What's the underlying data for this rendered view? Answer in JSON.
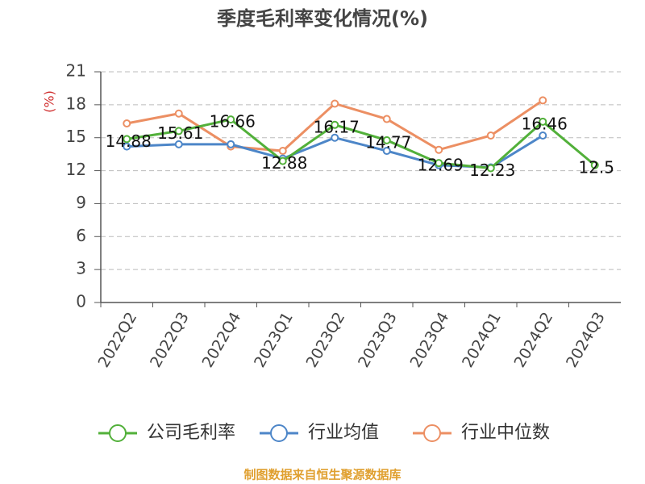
{
  "chart_data": {
    "type": "line",
    "title": "季度毛利率变化情况(%)",
    "y_label": "(%)",
    "categories": [
      "2022Q2",
      "2022Q3",
      "2022Q4",
      "2023Q1",
      "2023Q2",
      "2023Q3",
      "2023Q4",
      "2024Q1",
      "2024Q2",
      "2024Q3"
    ],
    "series": [
      {
        "name": "公司毛利率",
        "color": "#52b03a",
        "values": [
          14.88,
          15.61,
          16.66,
          12.88,
          16.17,
          14.77,
          12.69,
          12.23,
          16.46,
          12.5
        ],
        "show_labels": true
      },
      {
        "name": "行业均值",
        "color": "#4d86c8",
        "values": [
          14.2,
          14.4,
          14.4,
          13.1,
          15.0,
          13.8,
          12.5,
          12.3,
          15.2,
          null
        ],
        "show_labels": false
      },
      {
        "name": "行业中位数",
        "color": "#ec8f63",
        "values": [
          16.3,
          17.2,
          14.2,
          13.8,
          18.1,
          16.7,
          13.9,
          15.2,
          18.4,
          null
        ],
        "show_labels": false
      }
    ],
    "ylim": [
      0,
      21
    ],
    "yticks": [
      0,
      3,
      6,
      9,
      12,
      15,
      18,
      21
    ],
    "grid": true,
    "source": "制图数据来自恒生聚源数据库"
  }
}
